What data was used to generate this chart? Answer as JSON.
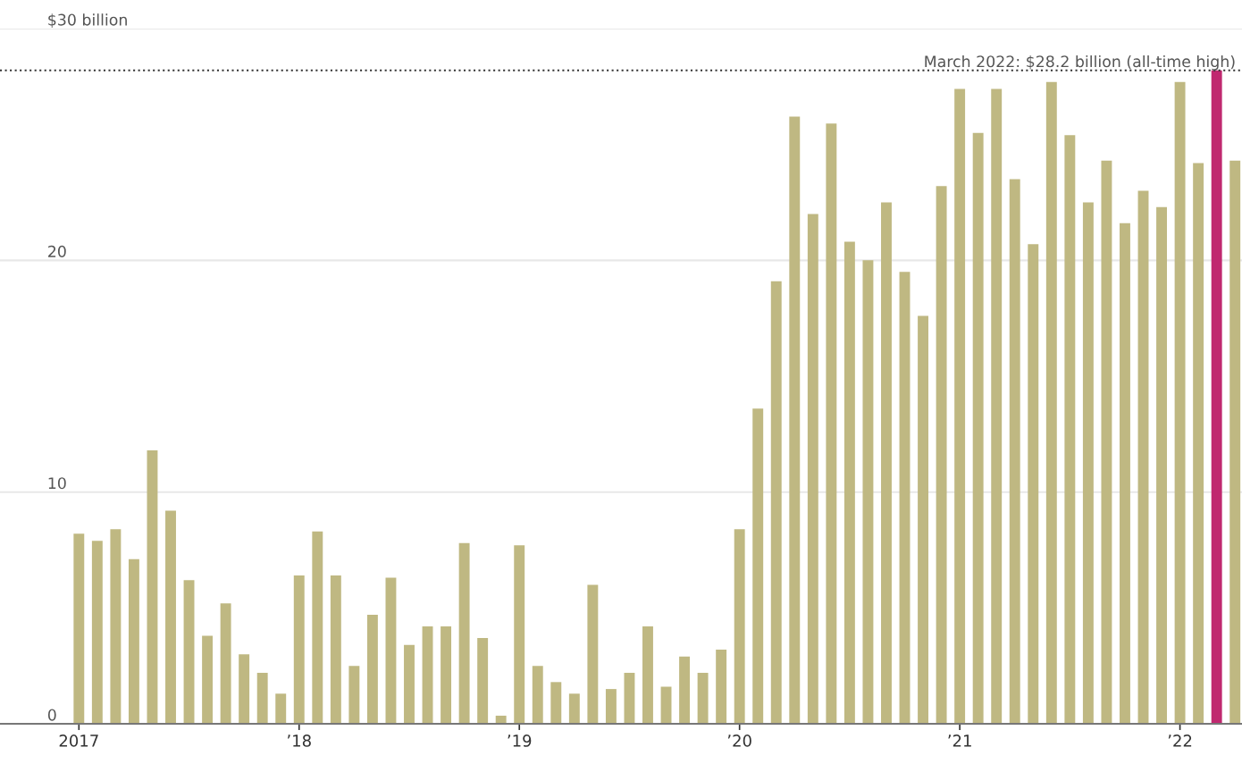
{
  "chart_data": {
    "type": "bar",
    "categories": [
      "2017",
      null,
      null,
      null,
      null,
      null,
      null,
      null,
      null,
      null,
      null,
      null,
      "’18",
      null,
      null,
      null,
      null,
      null,
      null,
      null,
      null,
      null,
      null,
      null,
      "’19",
      null,
      null,
      null,
      null,
      null,
      null,
      null,
      null,
      null,
      null,
      null,
      "’20",
      null,
      null,
      null,
      null,
      null,
      null,
      null,
      null,
      null,
      null,
      null,
      "’21",
      null,
      null,
      null,
      null,
      null,
      null,
      null,
      null,
      null,
      null,
      null,
      "’22",
      null,
      null,
      null
    ],
    "values": [
      8.2,
      7.9,
      8.4,
      7.1,
      11.8,
      9.2,
      6.2,
      3.8,
      5.2,
      3.0,
      2.2,
      1.3,
      6.4,
      8.3,
      6.4,
      2.5,
      4.7,
      6.3,
      3.4,
      4.2,
      4.2,
      7.8,
      3.7,
      0.35,
      7.7,
      2.5,
      1.8,
      1.3,
      6.0,
      1.5,
      2.2,
      4.2,
      1.6,
      2.9,
      2.2,
      3.2,
      8.4,
      13.6,
      19.1,
      26.2,
      22.0,
      25.9,
      20.8,
      20.0,
      22.5,
      19.5,
      17.6,
      23.2,
      27.4,
      25.5,
      27.4,
      23.5,
      20.7,
      27.7,
      25.4,
      22.5,
      24.3,
      21.6,
      23.0,
      22.3,
      27.7,
      24.2,
      28.2,
      24.3
    ],
    "colors": [
      "#bfb882",
      "#bfb882",
      "#bfb882",
      "#bfb882",
      "#bfb882",
      "#bfb882",
      "#bfb882",
      "#bfb882",
      "#bfb882",
      "#bfb882",
      "#bfb882",
      "#bfb882",
      "#bfb882",
      "#bfb882",
      "#bfb882",
      "#bfb882",
      "#bfb882",
      "#bfb882",
      "#bfb882",
      "#bfb882",
      "#bfb882",
      "#bfb882",
      "#bfb882",
      "#bfb882",
      "#bfb882",
      "#bfb882",
      "#bfb882",
      "#bfb882",
      "#bfb882",
      "#bfb882",
      "#bfb882",
      "#bfb882",
      "#bfb882",
      "#bfb882",
      "#bfb882",
      "#bfb882",
      "#bfb882",
      "#bfb882",
      "#bfb882",
      "#bfb882",
      "#bfb882",
      "#bfb882",
      "#bfb882",
      "#bfb882",
      "#bfb882",
      "#bfb882",
      "#bfb882",
      "#bfb882",
      "#bfb882",
      "#bfb882",
      "#bfb882",
      "#bfb882",
      "#bfb882",
      "#bfb882",
      "#bfb882",
      "#bfb882",
      "#bfb882",
      "#bfb882",
      "#bfb882",
      "#bfb882",
      "#bfb882",
      "#bfb882",
      "#c0286f",
      "#bfb882"
    ],
    "ylim": [
      0,
      30
    ],
    "yticks": [
      0,
      10,
      20,
      {
        "value": 30,
        "label": "$30 billion"
      }
    ],
    "grid": "y",
    "ref_lines": [
      {
        "axis": "y",
        "value": 28.2,
        "label": "March 2022: $28.2 billion (all-time high)",
        "color": "#333333",
        "line_style": "dotted"
      }
    ]
  }
}
